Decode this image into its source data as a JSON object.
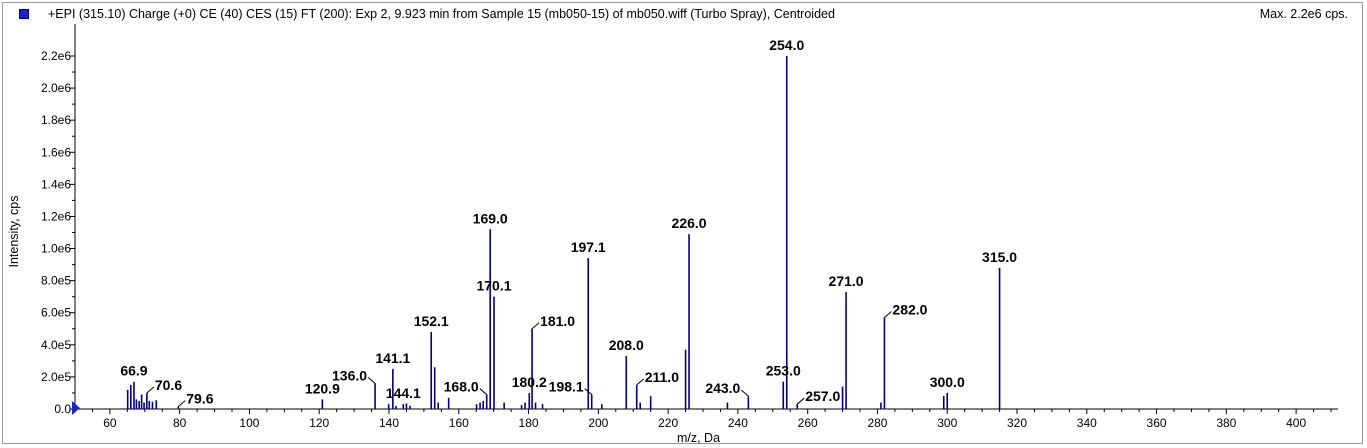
{
  "header": {
    "title": "+EPI (315.10) Charge (+0) CE (40) CES (15) FT (200): Exp 2, 9.923 min from Sample 15 (mb050-15) of mb050.wiff (Turbo Spray), Centroided",
    "max_label": "Max. 2.2e6 cps."
  },
  "colors": {
    "series": "#00007f",
    "marker": "#1a22cc",
    "axis": "#000000"
  },
  "chart_data": {
    "type": "bar",
    "title": "+EPI (315.10) Charge (+0) CE (40) CES (15) FT (200): Exp 2, 9.923 min from Sample 15 (mb050-15) of mb050.wiff (Turbo Spray), Centroided",
    "xlabel": "m/z, Da",
    "ylabel": "Intensity, cps",
    "xlim": [
      50,
      412
    ],
    "ylim": [
      0,
      2300000
    ],
    "x_ticks": [
      60,
      80,
      100,
      120,
      140,
      160,
      180,
      200,
      220,
      240,
      260,
      280,
      300,
      320,
      340,
      360,
      380,
      400
    ],
    "y_ticks": [
      0,
      200000,
      400000,
      600000,
      800000,
      1000000,
      1200000,
      1400000,
      1600000,
      1800000,
      2000000,
      2200000
    ],
    "y_tick_labels": [
      "0.0",
      "2.0e5",
      "4.0e5",
      "6.0e5",
      "8.0e5",
      "1.0e6",
      "1.2e6",
      "1.4e6",
      "1.6e6",
      "1.8e6",
      "2.0e6",
      "2.2e6"
    ],
    "grid": false,
    "peaks": [
      {
        "mz": 65.1,
        "intensity": 120000
      },
      {
        "mz": 66.0,
        "intensity": 150000
      },
      {
        "mz": 66.9,
        "intensity": 170000,
        "label": "66.9"
      },
      {
        "mz": 67.6,
        "intensity": 60000
      },
      {
        "mz": 68.4,
        "intensity": 50000
      },
      {
        "mz": 69.1,
        "intensity": 90000
      },
      {
        "mz": 69.8,
        "intensity": 40000
      },
      {
        "mz": 70.6,
        "intensity": 100000,
        "label": "70.6"
      },
      {
        "mz": 71.3,
        "intensity": 50000
      },
      {
        "mz": 72.2,
        "intensity": 45000
      },
      {
        "mz": 73.3,
        "intensity": 55000
      },
      {
        "mz": 79.6,
        "intensity": 15000,
        "label": "79.6"
      },
      {
        "mz": 120.9,
        "intensity": 60000,
        "label": "120.9"
      },
      {
        "mz": 136.0,
        "intensity": 160000,
        "label": "136.0"
      },
      {
        "mz": 139.9,
        "intensity": 30000
      },
      {
        "mz": 141.1,
        "intensity": 250000,
        "label": "141.1"
      },
      {
        "mz": 142.0,
        "intensity": 20000
      },
      {
        "mz": 144.1,
        "intensity": 30000,
        "label": "144.1"
      },
      {
        "mz": 145.0,
        "intensity": 35000
      },
      {
        "mz": 146.0,
        "intensity": 20000
      },
      {
        "mz": 152.1,
        "intensity": 480000,
        "label": "152.1"
      },
      {
        "mz": 153.1,
        "intensity": 260000
      },
      {
        "mz": 154.1,
        "intensity": 40000
      },
      {
        "mz": 157.1,
        "intensity": 70000
      },
      {
        "mz": 165.1,
        "intensity": 30000
      },
      {
        "mz": 166.1,
        "intensity": 40000
      },
      {
        "mz": 167.0,
        "intensity": 50000
      },
      {
        "mz": 168.0,
        "intensity": 90000,
        "label": "168.0"
      },
      {
        "mz": 169.0,
        "intensity": 1120000,
        "label": "169.0"
      },
      {
        "mz": 170.1,
        "intensity": 700000,
        "label": "170.1"
      },
      {
        "mz": 173.0,
        "intensity": 40000
      },
      {
        "mz": 178.0,
        "intensity": 25000
      },
      {
        "mz": 179.0,
        "intensity": 40000
      },
      {
        "mz": 180.2,
        "intensity": 100000,
        "label": "180.2"
      },
      {
        "mz": 181.0,
        "intensity": 500000,
        "label": "181.0"
      },
      {
        "mz": 182.0,
        "intensity": 40000
      },
      {
        "mz": 184.0,
        "intensity": 30000
      },
      {
        "mz": 197.1,
        "intensity": 940000,
        "label": "197.1"
      },
      {
        "mz": 198.1,
        "intensity": 90000,
        "label": "198.1"
      },
      {
        "mz": 201.0,
        "intensity": 30000
      },
      {
        "mz": 208.0,
        "intensity": 330000,
        "label": "208.0"
      },
      {
        "mz": 211.0,
        "intensity": 150000,
        "label": "211.0"
      },
      {
        "mz": 212.0,
        "intensity": 40000
      },
      {
        "mz": 215.0,
        "intensity": 80000
      },
      {
        "mz": 225.0,
        "intensity": 370000
      },
      {
        "mz": 226.0,
        "intensity": 1090000,
        "label": "226.0"
      },
      {
        "mz": 237.0,
        "intensity": 40000
      },
      {
        "mz": 243.0,
        "intensity": 80000,
        "label": "243.0"
      },
      {
        "mz": 253.0,
        "intensity": 170000,
        "label": "253.0"
      },
      {
        "mz": 254.0,
        "intensity": 2200000,
        "label": "254.0"
      },
      {
        "mz": 257.0,
        "intensity": 30000,
        "label": "257.0"
      },
      {
        "mz": 270.0,
        "intensity": 140000
      },
      {
        "mz": 271.0,
        "intensity": 730000,
        "label": "271.0"
      },
      {
        "mz": 281.0,
        "intensity": 40000
      },
      {
        "mz": 282.0,
        "intensity": 570000,
        "label": "282.0"
      },
      {
        "mz": 299.0,
        "intensity": 80000
      },
      {
        "mz": 300.0,
        "intensity": 100000,
        "label": "300.0"
      },
      {
        "mz": 315.0,
        "intensity": 880000,
        "label": "315.0"
      }
    ]
  }
}
